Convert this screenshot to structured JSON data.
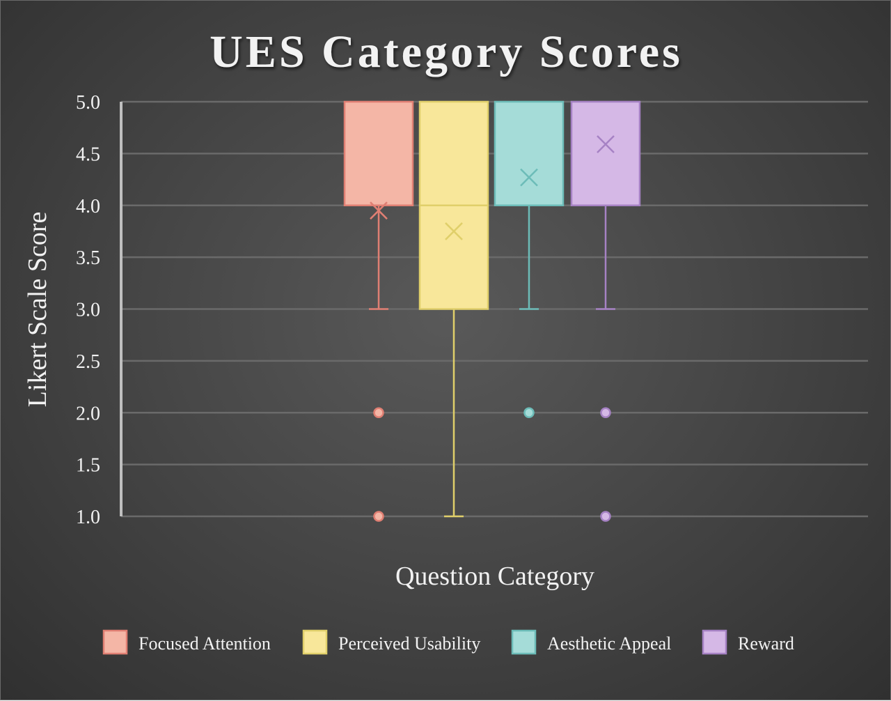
{
  "chart_data": {
    "type": "box",
    "title": "UES Category Scores",
    "xlabel": "Question Category",
    "ylabel": "Likert Scale Score",
    "ylim": [
      1.0,
      5.0
    ],
    "yticks": [
      "1.0",
      "1.5",
      "2.0",
      "2.5",
      "3.0",
      "3.5",
      "4.0",
      "4.5",
      "5.0"
    ],
    "grid": true,
    "legend_position": "bottom",
    "series": [
      {
        "name": "Focused Attention",
        "q1": 4.0,
        "median": 4.0,
        "q3": 5.0,
        "whisker_low": 3.0,
        "whisker_high": 5.0,
        "mean": 3.95,
        "outliers": [
          2.0,
          1.0
        ],
        "fill": "#f4b6a6",
        "stroke": "#e07f73"
      },
      {
        "name": "Perceived Usability",
        "q1": 3.0,
        "median": 4.0,
        "q3": 5.0,
        "whisker_low": 1.0,
        "whisker_high": 5.0,
        "mean": 3.75,
        "outliers": [],
        "fill": "#f8e79a",
        "stroke": "#e0cf6a"
      },
      {
        "name": "Aesthetic Appeal",
        "q1": 4.0,
        "median": 4.0,
        "q3": 5.0,
        "whisker_low": 3.0,
        "whisker_high": 5.0,
        "mean": 4.27,
        "outliers": [
          2.0
        ],
        "fill": "#a5dcd8",
        "stroke": "#6cbcb8"
      },
      {
        "name": "Reward",
        "q1": 4.0,
        "median": 4.0,
        "q3": 5.0,
        "whisker_low": 3.0,
        "whisker_high": 5.0,
        "mean": 4.59,
        "outliers": [
          2.0,
          1.0
        ],
        "fill": "#d5b8e6",
        "stroke": "#a682c4"
      }
    ]
  }
}
